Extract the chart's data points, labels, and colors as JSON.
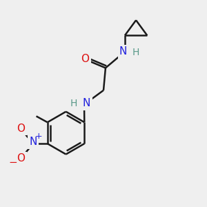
{
  "bg_color": "#efefef",
  "bond_color": "#1a1a1a",
  "bond_width": 1.8,
  "atom_colors": {
    "C": "#1a1a1a",
    "H": "#5a9a8a",
    "N": "#2020dd",
    "O": "#dd1111"
  },
  "font_size": 11,
  "fig_size": [
    3.0,
    3.0
  ],
  "dpi": 100
}
